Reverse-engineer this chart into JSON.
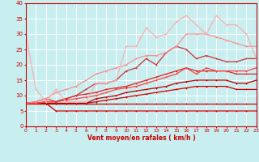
{
  "xlabel": "Vent moyen/en rafales ( km/h )",
  "bg_color": "#c8eef0",
  "grid_color": "#ffffff",
  "x_max": 23,
  "y_min": 0,
  "y_max": 40,
  "series": [
    {
      "x": [
        0,
        1,
        2,
        3,
        4,
        5,
        6,
        7,
        8,
        9,
        10,
        11,
        12,
        13,
        14,
        15,
        16,
        17,
        18,
        19,
        20,
        21,
        22,
        23
      ],
      "y": [
        7.5,
        7.5,
        7.5,
        5,
        5,
        5,
        5,
        5,
        5,
        5,
        5,
        5,
        5,
        5,
        5,
        5,
        5,
        5,
        5,
        5,
        5,
        5,
        5,
        5
      ],
      "color": "#cc0000",
      "lw": 0.9,
      "marker": "+"
    },
    {
      "x": [
        0,
        1,
        2,
        3,
        4,
        5,
        6,
        7,
        8,
        9,
        10,
        11,
        12,
        13,
        14,
        15,
        16,
        17,
        18,
        19,
        20,
        21,
        22,
        23
      ],
      "y": [
        7.5,
        7.5,
        7.5,
        7.5,
        7.5,
        7.5,
        7.5,
        7.5,
        7.5,
        7.5,
        7.5,
        7.5,
        7.5,
        7.5,
        7.5,
        7.5,
        7.5,
        7.5,
        7.5,
        7.5,
        7.5,
        7.5,
        7.5,
        7.5
      ],
      "color": "#cc0000",
      "lw": 0.9,
      "marker": "+"
    },
    {
      "x": [
        0,
        1,
        2,
        3,
        4,
        5,
        6,
        7,
        8,
        9,
        10,
        11,
        12,
        13,
        14,
        15,
        16,
        17,
        18,
        19,
        20,
        21,
        22,
        23
      ],
      "y": [
        7.5,
        7.5,
        7.5,
        7.5,
        7.5,
        7.5,
        7.5,
        8,
        8.5,
        9,
        9.5,
        10,
        10.5,
        11,
        11.5,
        12,
        12.5,
        13,
        13,
        13,
        13,
        12,
        12,
        12
      ],
      "color": "#cc0000",
      "lw": 0.9,
      "marker": "+"
    },
    {
      "x": [
        0,
        1,
        2,
        3,
        4,
        5,
        6,
        7,
        8,
        9,
        10,
        11,
        12,
        13,
        14,
        15,
        16,
        17,
        18,
        19,
        20,
        21,
        22,
        23
      ],
      "y": [
        7.5,
        7.5,
        7.5,
        7.5,
        7.5,
        7.5,
        7.5,
        9,
        9.5,
        10,
        11,
        11.5,
        12,
        12.5,
        13,
        14,
        14.5,
        15,
        15,
        15,
        15,
        14,
        14,
        15
      ],
      "color": "#bb0000",
      "lw": 0.9,
      "marker": "+"
    },
    {
      "x": [
        0,
        1,
        2,
        3,
        4,
        5,
        6,
        7,
        8,
        9,
        10,
        11,
        12,
        13,
        14,
        15,
        16,
        17,
        18,
        19,
        20,
        21,
        22,
        23
      ],
      "y": [
        7.5,
        7.5,
        8,
        8,
        9,
        10,
        10.5,
        11,
        12,
        12.5,
        13,
        14,
        15,
        16,
        17,
        18,
        19,
        18,
        18,
        18,
        18,
        17,
        17,
        17
      ],
      "color": "#dd2222",
      "lw": 0.9,
      "marker": "+"
    },
    {
      "x": [
        0,
        1,
        2,
        3,
        4,
        5,
        6,
        7,
        8,
        9,
        10,
        11,
        12,
        13,
        14,
        15,
        16,
        17,
        18,
        19,
        20,
        21,
        22,
        23
      ],
      "y": [
        7.5,
        7.5,
        8,
        8,
        8.5,
        9,
        9.5,
        10,
        11,
        12,
        12.5,
        13,
        14,
        15,
        16,
        17,
        19,
        17,
        19,
        18,
        18,
        18,
        18,
        19
      ],
      "color": "#ff4444",
      "lw": 0.9,
      "marker": "+"
    },
    {
      "x": [
        0,
        1,
        2,
        3,
        4,
        5,
        6,
        7,
        8,
        9,
        10,
        11,
        12,
        13,
        14,
        15,
        16,
        17,
        18,
        19,
        20,
        21,
        22,
        23
      ],
      "y": [
        7.5,
        8,
        9,
        8,
        9,
        10,
        12,
        14,
        14,
        15,
        18,
        19,
        22,
        20,
        24,
        26,
        25,
        22,
        23,
        22,
        21,
        21,
        22,
        22
      ],
      "color": "#cc3333",
      "lw": 0.9,
      "marker": "+"
    },
    {
      "x": [
        0,
        1,
        2,
        3,
        4,
        5,
        6,
        7,
        8,
        9,
        10,
        11,
        12,
        13,
        14,
        15,
        16,
        17,
        18,
        19,
        20,
        21,
        22,
        23
      ],
      "y": [
        7.5,
        8,
        9,
        11,
        12,
        13,
        15,
        17,
        18,
        19,
        20,
        22,
        23,
        23,
        24,
        26,
        30,
        30,
        30,
        29,
        28,
        27,
        26,
        26
      ],
      "color": "#ff8888",
      "lw": 0.8,
      "marker": "+"
    },
    {
      "x": [
        0,
        1,
        2,
        3,
        4,
        5,
        6,
        7,
        8,
        9,
        10,
        11,
        12,
        13,
        14,
        15,
        16,
        17,
        18,
        19,
        20,
        21,
        22,
        23
      ],
      "y": [
        30,
        12,
        8,
        12,
        8,
        8,
        8,
        14,
        14,
        15,
        26,
        26,
        32,
        29,
        30,
        34,
        36,
        33,
        30,
        36,
        33,
        33,
        30,
        22
      ],
      "color": "#ffaaaa",
      "lw": 0.8,
      "marker": "+"
    }
  ],
  "yticks": [
    0,
    5,
    10,
    15,
    20,
    25,
    30,
    35,
    40
  ],
  "arrow_chars": [
    "↙",
    "↙",
    "↙",
    "↓",
    "↙",
    "↘",
    "↓",
    "↙",
    "↓",
    "↘",
    "↓",
    "↓",
    "↓",
    "↓",
    "↓",
    "↓",
    "↓",
    "↘",
    "↓",
    "↘",
    "↓",
    "↘",
    "↓",
    "↙"
  ]
}
